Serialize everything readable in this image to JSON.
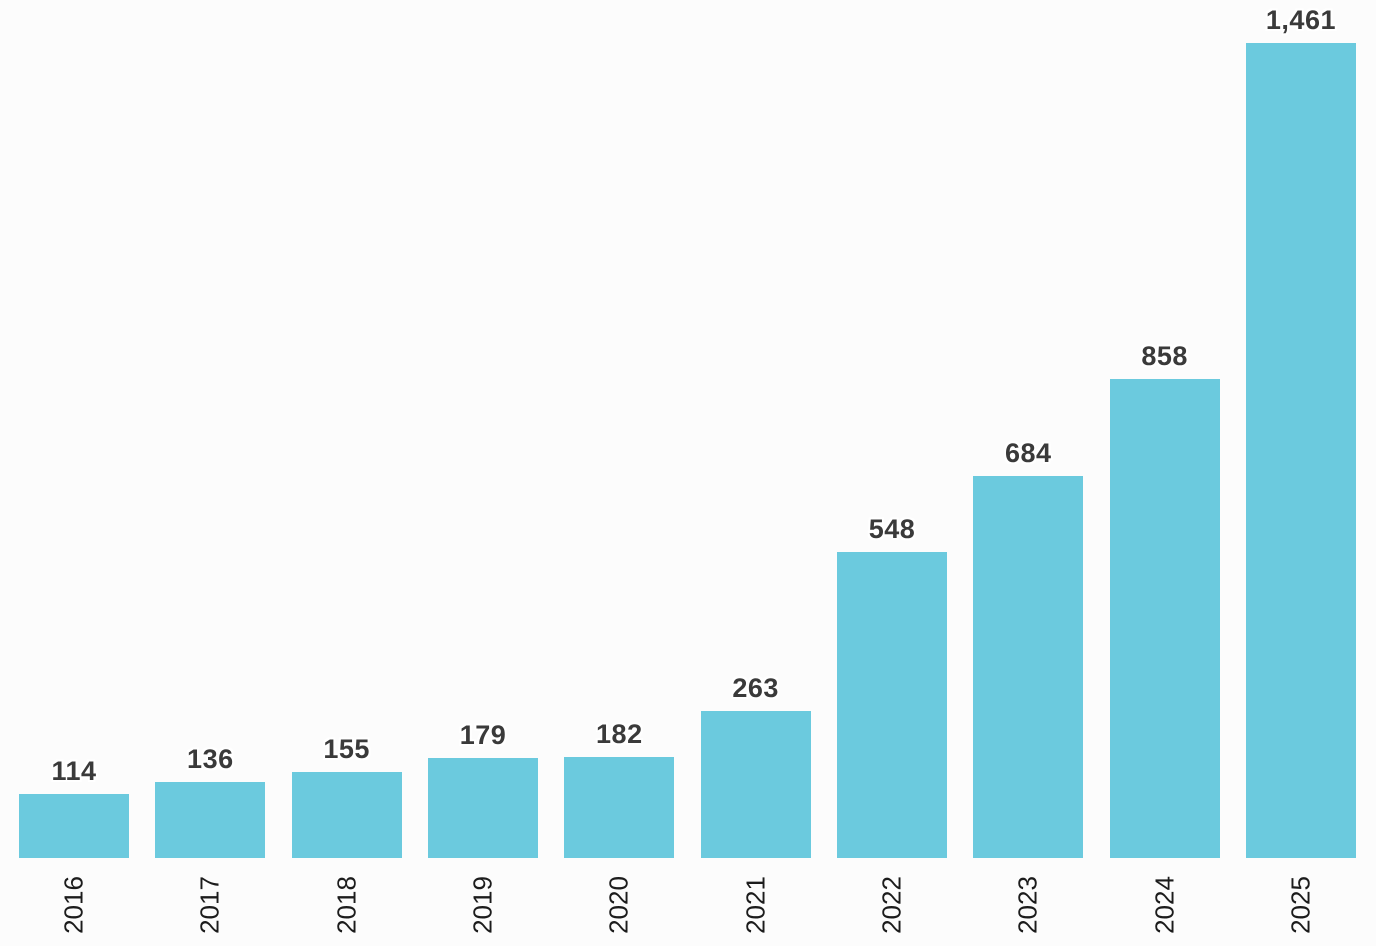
{
  "chart_data": {
    "type": "bar",
    "title": "",
    "xlabel": "",
    "ylabel": "",
    "categories": [
      "2016",
      "2017",
      "2018",
      "2019",
      "2020",
      "2021",
      "2022",
      "2023",
      "2024",
      "2025"
    ],
    "values": [
      114,
      136,
      155,
      179,
      182,
      263,
      548,
      684,
      858,
      1461
    ],
    "value_labels": [
      "114",
      "136",
      "155",
      "179",
      "182",
      "263",
      "548",
      "684",
      "858",
      "1,461"
    ],
    "ylim": [
      0,
      1461
    ],
    "grid": false,
    "legend": false,
    "bar_color": "#6BCADE",
    "value_label_color": "#3A3A3A",
    "tick_label_color": "#1C1C1C",
    "background_color": "#FCFCFC"
  }
}
